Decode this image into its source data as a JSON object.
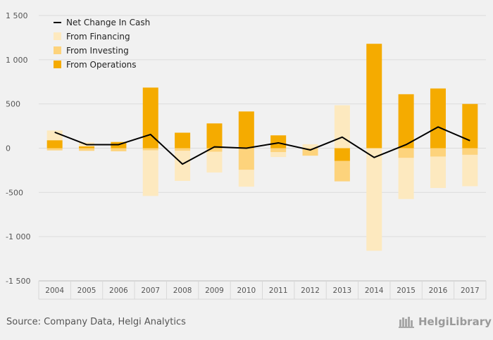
{
  "source_text": "Source: Company Data, Helgi Analytics",
  "logo_text": "HelgiLibrary",
  "colors": {
    "background": "#f1f1f1",
    "grid": "#dcdcdc",
    "financing": "#fde9bf",
    "investing": "#fdd37c",
    "operations": "#f5ab00",
    "net_line": "#000000",
    "tick_text": "#555555"
  },
  "chart_data": {
    "type": "bar",
    "stacked": true,
    "categories": [
      "2004",
      "2005",
      "2006",
      "2007",
      "2008",
      "2009",
      "2010",
      "2011",
      "2012",
      "2013",
      "2014",
      "2015",
      "2016",
      "2017"
    ],
    "series": [
      {
        "name": "From Financing",
        "type": "bar",
        "values": [
          110,
          45,
          0,
          -515,
          -340,
          -235,
          -190,
          -55,
          45,
          485,
          -1160,
          -465,
          -355,
          -355
        ]
      },
      {
        "name": "From Investing",
        "type": "bar",
        "values": [
          -25,
          -30,
          -35,
          -25,
          -30,
          -40,
          -245,
          -45,
          -85,
          -230,
          0,
          -110,
          -95,
          -75
        ]
      },
      {
        "name": "From Operations",
        "type": "bar",
        "values": [
          90,
          20,
          70,
          685,
          175,
          280,
          415,
          145,
          0,
          -145,
          1180,
          610,
          675,
          500
        ]
      },
      {
        "name": "Net Change In Cash",
        "type": "line",
        "values": [
          180,
          40,
          40,
          155,
          -180,
          15,
          0,
          60,
          -20,
          125,
          -105,
          40,
          240,
          85
        ]
      }
    ],
    "y_ticks": [
      "1 500",
      "1 000",
      "500",
      "0",
      "-500",
      "-1 000",
      "-1 500"
    ],
    "y_tick_values": [
      1500,
      1000,
      500,
      0,
      -500,
      -1000,
      -1500
    ],
    "ylim": [
      -1500,
      1500
    ],
    "grid": true,
    "legend_position": "top-left",
    "legend": [
      "Net Change In Cash",
      "From Financing",
      "From Investing",
      "From Operations"
    ],
    "title": "",
    "xlabel": "",
    "ylabel": ""
  }
}
